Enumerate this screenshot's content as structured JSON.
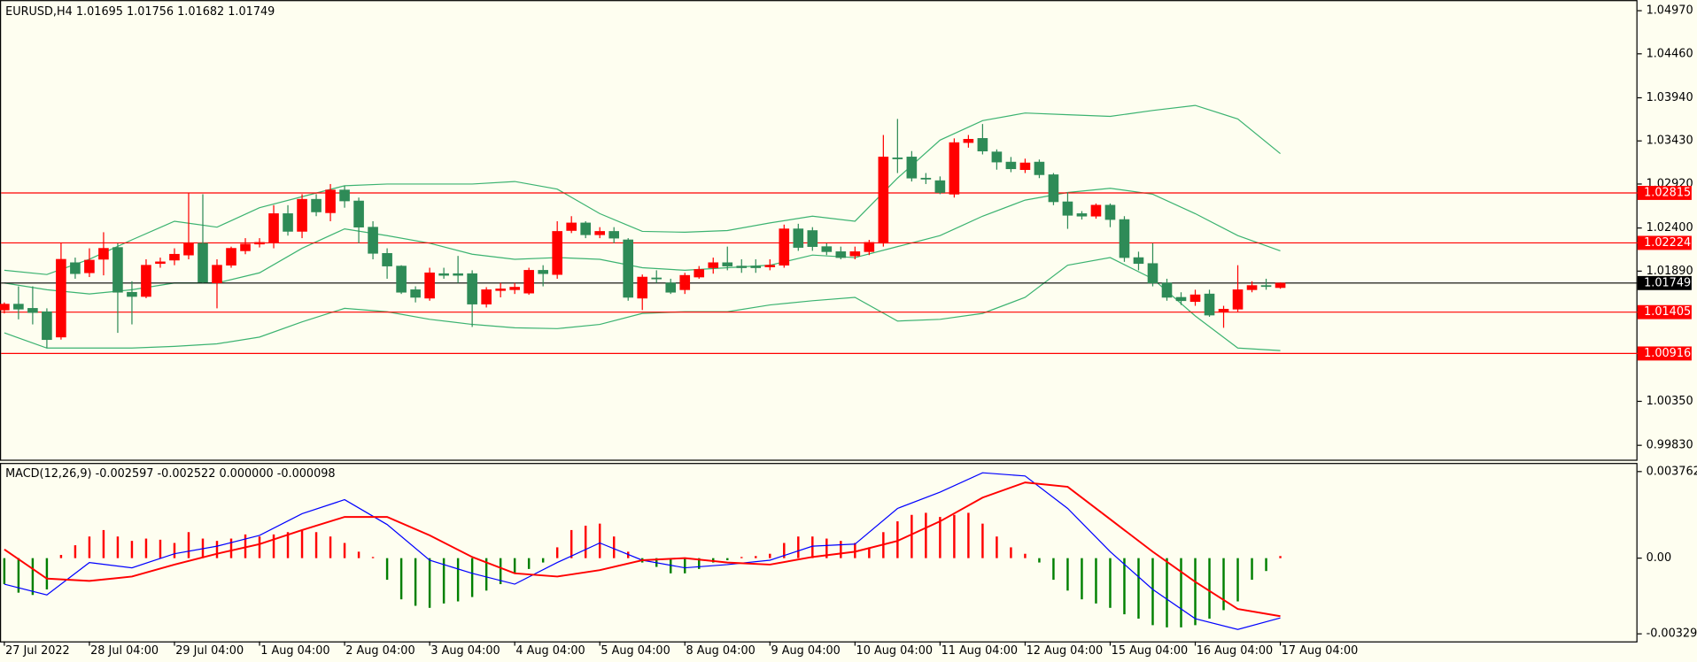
{
  "chart_data": [
    {
      "type": "candlestick",
      "title": "EURUSD,H4  1.01695 1.01756 1.01682 1.01749",
      "categories": [
        "27 Jul 2022",
        null,
        null,
        null,
        null,
        null,
        "28 Jul 04:00",
        null,
        null,
        null,
        null,
        null,
        "29 Jul 04:00",
        null,
        null,
        null,
        null,
        null,
        "1 Aug 04:00",
        null,
        null,
        null,
        null,
        null,
        "2 Aug 04:00",
        null,
        null,
        null,
        null,
        null,
        "3 Aug 04:00",
        null,
        null,
        null,
        null,
        null,
        "4 Aug 04:00",
        null,
        null,
        null,
        null,
        null,
        "5 Aug 04:00",
        null,
        null,
        null,
        null,
        null,
        "8 Aug 04:00",
        null,
        null,
        null,
        null,
        null,
        "9 Aug 04:00",
        null,
        null,
        null,
        null,
        null,
        "10 Aug 04:00",
        null,
        null,
        null,
        null,
        null,
        "11 Aug 04:00",
        null,
        null,
        null,
        null,
        null,
        "12 Aug 04:00",
        null,
        null,
        null,
        null,
        null,
        "15 Aug 04:00",
        null,
        null,
        null,
        null,
        null,
        "16 Aug 04:00",
        null,
        null,
        null,
        null,
        null,
        "17 Aug 04:00"
      ],
      "open": [
        1.0143,
        1.015,
        1.0145,
        1.0141,
        1.0111,
        1.0199,
        1.0187,
        1.0203,
        1.0217,
        1.0164,
        1.0159,
        1.0198,
        1.0202,
        1.0208,
        1.0222,
        1.0175,
        1.0196,
        1.0213,
        1.0221,
        1.0223,
        1.0257,
        1.0236,
        1.0274,
        1.0258,
        1.0285,
        1.0272,
        1.0241,
        1.021,
        1.0195,
        1.0167,
        1.0157,
        1.0186,
        1.0186,
        1.0186,
        1.015,
        1.0166,
        1.0167,
        1.0163,
        1.019,
        1.0185,
        1.0237,
        1.0246,
        1.0232,
        1.0236,
        1.0226,
        1.0157,
        1.0181,
        1.0175,
        1.0167,
        1.0182,
        1.0193,
        1.0199,
        1.0195,
        1.0195,
        1.0194,
        1.0196,
        1.0239,
        1.0237,
        1.0218,
        1.0212,
        1.0207,
        1.0212,
        1.0222,
        1.0323,
        1.0324,
        1.0299,
        1.0296,
        1.028,
        1.0341,
        1.0346,
        1.033,
        1.0318,
        1.0309,
        1.0318,
        1.0303,
        1.0271,
        1.0257,
        1.0254,
        1.0267,
        1.025,
        1.0205,
        1.0198,
        1.0175,
        1.0158,
        1.0153,
        1.0162,
        1.0141,
        1.0144,
        1.0167,
        1.0172,
        1.01695
      ],
      "high": [
        1.0152,
        1.0171,
        1.0171,
        1.0145,
        1.0222,
        1.0205,
        1.0216,
        1.0235,
        1.0222,
        1.0177,
        1.0203,
        1.0205,
        1.0216,
        1.0282,
        1.028,
        1.0203,
        1.0218,
        1.0228,
        1.0228,
        1.0267,
        1.0267,
        1.028,
        1.028,
        1.0292,
        1.029,
        1.0276,
        1.0248,
        1.0216,
        1.0196,
        1.0171,
        1.0193,
        1.0193,
        1.0207,
        1.019,
        1.017,
        1.0175,
        1.0175,
        1.0193,
        1.0196,
        1.0248,
        1.0254,
        1.0248,
        1.0241,
        1.0241,
        1.0228,
        1.0185,
        1.019,
        1.018,
        1.0187,
        1.0195,
        1.0205,
        1.0218,
        1.0203,
        1.0203,
        1.0203,
        1.0244,
        1.0245,
        1.0241,
        1.0222,
        1.0218,
        1.0218,
        1.0226,
        1.035,
        1.0369,
        1.0331,
        1.0305,
        1.0301,
        1.0346,
        1.035,
        1.0363,
        1.0333,
        1.0324,
        1.0322,
        1.0321,
        1.0305,
        1.0282,
        1.026,
        1.0269,
        1.0269,
        1.0254,
        1.0212,
        1.0222,
        1.018,
        1.0164,
        1.0167,
        1.0167,
        1.0148,
        1.0196,
        1.0177,
        1.018,
        1.01756
      ],
      "low": [
        1.0139,
        1.0132,
        1.0126,
        1.0098,
        1.0108,
        1.018,
        1.0182,
        1.0184,
        1.0116,
        1.0126,
        1.0157,
        1.0193,
        1.0196,
        1.0203,
        1.0175,
        1.0145,
        1.0193,
        1.0209,
        1.0217,
        1.0216,
        1.0231,
        1.0228,
        1.0254,
        1.0248,
        1.0264,
        1.0222,
        1.0203,
        1.018,
        1.0162,
        1.0152,
        1.0154,
        1.018,
        1.0175,
        1.0123,
        1.0146,
        1.0158,
        1.0162,
        1.0161,
        1.0171,
        1.018,
        1.0234,
        1.0228,
        1.0228,
        1.0222,
        1.0154,
        1.0143,
        1.0175,
        1.0162,
        1.0162,
        1.018,
        1.0186,
        1.019,
        1.0187,
        1.0187,
        1.019,
        1.0193,
        1.0213,
        1.0213,
        1.0208,
        1.0203,
        1.0203,
        1.0208,
        1.0218,
        1.0305,
        1.0295,
        1.0292,
        1.028,
        1.0276,
        1.0335,
        1.0327,
        1.0309,
        1.0306,
        1.0305,
        1.0299,
        1.0267,
        1.0239,
        1.025,
        1.0251,
        1.0241,
        1.02,
        1.019,
        1.0171,
        1.0154,
        1.0149,
        1.0148,
        1.0135,
        1.0122,
        1.0141,
        1.0164,
        1.0167,
        1.01682
      ],
      "close": [
        1.015,
        1.0144,
        1.014,
        1.0108,
        1.0203,
        1.0186,
        1.0202,
        1.0216,
        1.0164,
        1.0159,
        1.0196,
        1.02,
        1.0209,
        1.0222,
        1.0176,
        1.0196,
        1.0216,
        1.0221,
        1.0223,
        1.0257,
        1.0236,
        1.0274,
        1.0259,
        1.0285,
        1.0272,
        1.0241,
        1.021,
        1.0195,
        1.0164,
        1.0158,
        1.0187,
        1.0184,
        1.0184,
        1.015,
        1.0167,
        1.0168,
        1.017,
        1.019,
        1.0186,
        1.0236,
        1.0246,
        1.0232,
        1.0236,
        1.0228,
        1.0158,
        1.0182,
        1.018,
        1.0164,
        1.0184,
        1.0191,
        1.0199,
        1.0195,
        1.0193,
        1.0193,
        1.0196,
        1.0239,
        1.0217,
        1.0218,
        1.0212,
        1.0205,
        1.0212,
        1.0223,
        1.0324,
        1.0322,
        1.0299,
        1.0298,
        1.0282,
        1.0341,
        1.0345,
        1.0331,
        1.0318,
        1.031,
        1.0317,
        1.0303,
        1.0271,
        1.0255,
        1.0254,
        1.0267,
        1.025,
        1.0205,
        1.0198,
        1.0175,
        1.0158,
        1.0154,
        1.0161,
        1.0137,
        1.0144,
        1.0167,
        1.0172,
        1.0171,
        1.01749
      ],
      "up_color": "#ff0000",
      "down_color": "#2e8b57",
      "series": [
        {
          "color": "#3cb371",
          "x": [
            0,
            3,
            6,
            9,
            12,
            15,
            18,
            21,
            24,
            27,
            30,
            33,
            36,
            39,
            42,
            45,
            48,
            51,
            54,
            57,
            60,
            63,
            66,
            69,
            72,
            75,
            78,
            81,
            84,
            87,
            90
          ],
          "values": [
            1.019,
            1.0185,
            1.0203,
            1.0226,
            1.0248,
            1.0241,
            1.0264,
            1.0277,
            1.029,
            1.0292,
            1.0292,
            1.0292,
            1.0295,
            1.0286,
            1.0257,
            1.0236,
            1.0235,
            1.0237,
            1.0246,
            1.0254,
            1.0248,
            1.0299,
            1.0344,
            1.0367,
            1.0376,
            1.0374,
            1.0372,
            1.0379,
            1.0385,
            1.0369,
            1.0328
          ]
        },
        {
          "color": "#3cb371",
          "x": [
            0,
            3,
            6,
            9,
            12,
            15,
            18,
            21,
            24,
            27,
            30,
            33,
            36,
            39,
            42,
            45,
            48,
            51,
            54,
            57,
            60,
            63,
            66,
            69,
            72,
            75,
            78,
            81,
            84,
            87,
            90
          ],
          "values": [
            1.0175,
            1.0167,
            1.0162,
            1.0167,
            1.0175,
            1.0175,
            1.0187,
            1.0216,
            1.0239,
            1.0231,
            1.0222,
            1.0209,
            1.0203,
            1.0205,
            1.0203,
            1.0193,
            1.019,
            1.0193,
            1.0196,
            1.0208,
            1.0205,
            1.0218,
            1.0231,
            1.0254,
            1.0273,
            1.0282,
            1.0287,
            1.028,
            1.0257,
            1.0231,
            1.0213
          ]
        },
        {
          "color": "#3cb371",
          "x": [
            0,
            3,
            6,
            9,
            12,
            15,
            18,
            21,
            24,
            27,
            30,
            33,
            36,
            39,
            42,
            45,
            48,
            51,
            54,
            57,
            60,
            63,
            66,
            69,
            72,
            75,
            78,
            81,
            84,
            87,
            90
          ],
          "values": [
            1.0116,
            1.0098,
            1.0098,
            1.0098,
            1.01,
            1.0103,
            1.0111,
            1.0129,
            1.0145,
            1.0141,
            1.0132,
            1.0126,
            1.0122,
            1.0121,
            1.0126,
            1.0139,
            1.0141,
            1.0141,
            1.0149,
            1.0154,
            1.0158,
            1.013,
            1.0132,
            1.0139,
            1.0158,
            1.0196,
            1.0205,
            1.018,
            1.0136,
            1.0098,
            1.0095
          ]
        }
      ],
      "hlines": [
        {
          "value": 1.02815,
          "color": "#ff0000"
        },
        {
          "value": 1.02224,
          "color": "#ff0000"
        },
        {
          "value": 1.01405,
          "color": "#ff0000"
        },
        {
          "value": 1.00916,
          "color": "#ff0000"
        },
        {
          "value": 1.01749,
          "color": "#000000"
        }
      ],
      "ylim": [
        0.9966,
        1.0507
      ],
      "yticks": [
        {
          "value": 1.0497,
          "label": "1.04970"
        },
        {
          "value": 1.0446,
          "label": "1.04460"
        },
        {
          "value": 1.0394,
          "label": "1.03940"
        },
        {
          "value": 1.0343,
          "label": "1.03430"
        },
        {
          "value": 1.0292,
          "label": "1.02920"
        },
        {
          "value": 1.024,
          "label": "1.02400"
        },
        {
          "value": 1.0189,
          "label": "1.01890"
        },
        {
          "value": 1.0035,
          "label": "1.00350"
        },
        {
          "value": 0.9983,
          "label": "0.99830"
        }
      ]
    },
    {
      "type": "macd",
      "title": "MACD(12,26,9) -0.002597 -0.002522 0.000000 -0.000098",
      "values": [
        -0.00113,
        -0.0015,
        -0.0016,
        -0.00136,
        0.00014,
        0.00056,
        0.00094,
        0.00122,
        0.00094,
        0.00075,
        0.00085,
        0.0008,
        0.00066,
        0.00113,
        0.00085,
        0.00075,
        0.00085,
        0.00103,
        0.00094,
        0.00103,
        0.00113,
        0.00122,
        0.00113,
        0.00094,
        0.00066,
        0.00028,
        5e-05,
        -0.00094,
        -0.00179,
        -0.00207,
        -0.00216,
        -0.00197,
        -0.00188,
        -0.00169,
        -0.00141,
        -0.00113,
        -0.00066,
        -0.00047,
        -0.00019,
        0.00047,
        0.00122,
        0.00141,
        0.0015,
        0.00094,
        0.00028,
        -0.00019,
        -0.00038,
        -0.00066,
        -0.00066,
        -0.00047,
        -0.00019,
        -9e-05,
        5e-05,
        9e-05,
        0.00019,
        0.00066,
        0.00094,
        0.00094,
        0.00085,
        0.00075,
        0.00066,
        0.00047,
        0.00113,
        0.0016,
        0.00188,
        0.00197,
        0.00179,
        0.00188,
        0.00197,
        0.0015,
        0.00094,
        0.00047,
        0.00019,
        -0.00019,
        -0.00094,
        -0.00141,
        -0.00179,
        -0.00197,
        -0.00216,
        -0.00244,
        -0.00263,
        -0.00291,
        -0.00301,
        -0.00301,
        -0.00291,
        -0.00263,
        -0.00226,
        -0.00188,
        -0.00094,
        -0.00056,
        9e-05
      ],
      "up_color": "#ff0000",
      "down_color": "#008000",
      "series": [
        {
          "color": "#0000ff",
          "x": [
            0,
            3,
            6,
            9,
            12,
            15,
            18,
            21,
            24,
            27,
            30,
            33,
            36,
            39,
            42,
            45,
            48,
            51,
            54,
            57,
            60,
            63,
            66,
            69,
            72,
            75,
            78,
            81,
            84,
            87,
            90
          ],
          "values": [
            -0.00113,
            -0.0016,
            -0.00019,
            -0.00042,
            0.00019,
            0.00052,
            0.00099,
            0.00193,
            0.00254,
            0.00146,
            -9e-05,
            -0.00066,
            -0.00113,
            -0.00019,
            0.00066,
            -9e-05,
            -0.00042,
            -0.00028,
            -9e-05,
            0.00052,
            0.00061,
            0.00216,
            0.00287,
            0.00371,
            0.00357,
            0.00216,
            0.00028,
            -0.00136,
            -0.00263,
            -0.0031,
            -0.002597
          ]
        },
        {
          "color": "#ff0000",
          "x": [
            0,
            3,
            6,
            9,
            12,
            15,
            18,
            21,
            24,
            27,
            30,
            33,
            36,
            39,
            42,
            45,
            48,
            51,
            54,
            57,
            60,
            63,
            66,
            69,
            72,
            75,
            78,
            81,
            84,
            87,
            90
          ],
          "values": [
            0.00038,
            -0.00089,
            -0.00099,
            -0.0008,
            -0.00028,
            0.00019,
            0.00061,
            0.00122,
            0.00179,
            0.00179,
            0.00099,
            5e-05,
            -0.00066,
            -0.0008,
            -0.00052,
            -9e-05,
            0,
            -0.00019,
            -0.00028,
            5e-05,
            0.00028,
            0.00075,
            0.0016,
            0.00263,
            0.00329,
            0.0031,
            0.00169,
            0.00028,
            -0.00103,
            -0.00221,
            -0.002522
          ]
        }
      ],
      "ylim": [
        -0.00357,
        0.00409
      ],
      "yticks": [
        0.003762,
        {
          "value": 0,
          "label": "0.00"
        },
        -0.00329
      ]
    }
  ]
}
